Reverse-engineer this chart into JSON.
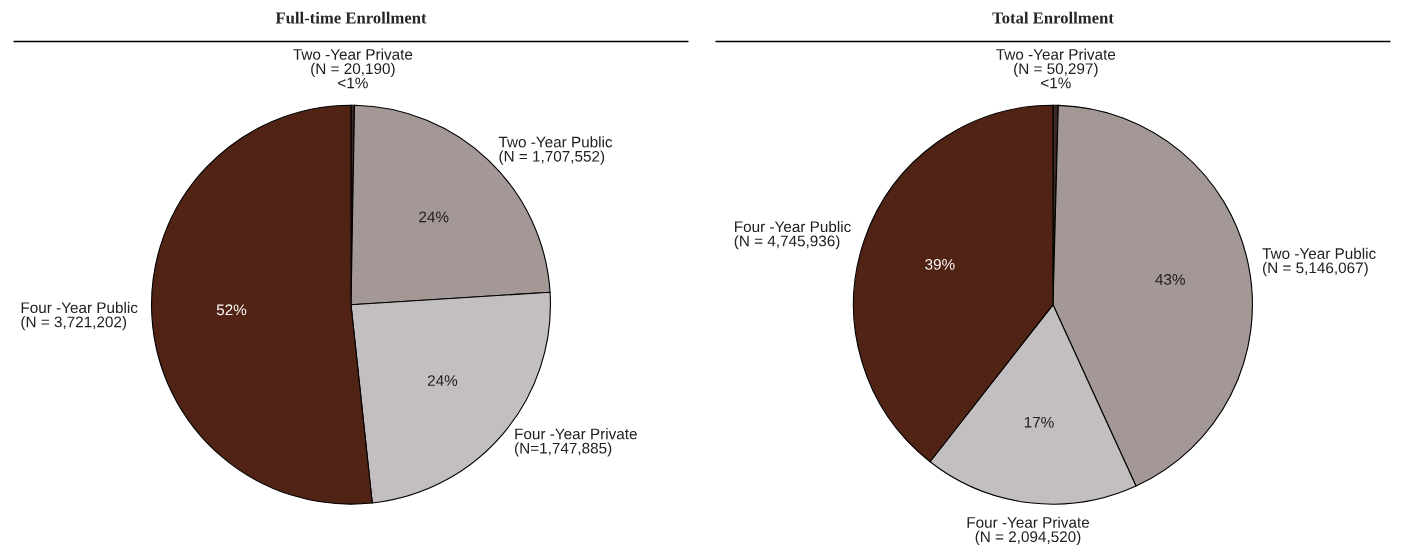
{
  "chart_data": [
    {
      "type": "pie",
      "title": "Full-time Enrollment",
      "categories": [
        "Two -Year Private\n(N = 20,190)",
        "Two -Year Public\n(N = 1,707,552)",
        "Four -Year Private\n(N=1,747,885)",
        "Four -Year Public\n(N = 3,721,202)"
      ],
      "values": [
        0.28,
        23.73,
        24.29,
        51.7
      ],
      "value_labels": [
        "<1%",
        "24%",
        "24%",
        "52%"
      ],
      "colors": [
        "#3a2a26",
        "#a39896",
        "#c3bfc0",
        "#512315"
      ]
    },
    {
      "type": "pie",
      "title": "Total Enrollment",
      "categories": [
        "Two -Year Private\n(N = 50,297)",
        "Two -Year Public\n(N = 5,146,067)",
        "Four -Year Private\n(N = 2,094,520)",
        "Four -Year Public\n(N = 4,745,936)"
      ],
      "values": [
        0.42,
        42.75,
        17.4,
        39.43
      ],
      "value_labels": [
        "<1%",
        "43%",
        "17%",
        "39%"
      ],
      "colors": [
        "#3a2a26",
        "#a39896",
        "#c3bfc0",
        "#512315"
      ]
    }
  ]
}
